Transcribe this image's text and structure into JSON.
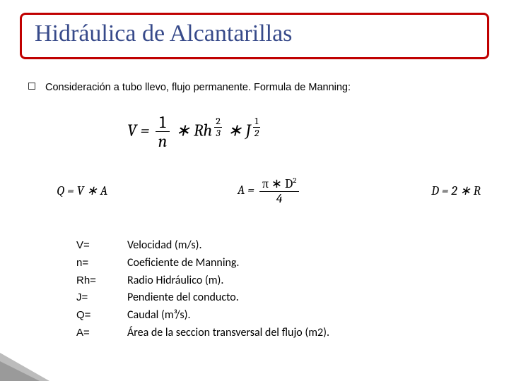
{
  "title": "Hidráulica de Alcantarillas",
  "bullet": "Consideración a tubo llevo, flujo permanente. Formula de Manning:",
  "formula_main": {
    "lhs": "V",
    "frac_num": "1",
    "frac_den": "n",
    "Rh": "Rh",
    "exp1_num": "2",
    "exp1_den": "3",
    "J": "J",
    "exp2_num": "1",
    "exp2_den": "2",
    "times": "∗"
  },
  "formula_q": {
    "Q": "Q",
    "eq": "=",
    "V": "V",
    "times": "∗",
    "A": "A"
  },
  "formula_a": {
    "A": "A",
    "eq": "=",
    "pi": "π",
    "D": "D",
    "sq": "2",
    "den": "4",
    "times": "∗"
  },
  "formula_d": {
    "D": "D",
    "eq": "=",
    "two": "2",
    "times": "∗",
    "R": "R"
  },
  "defs": [
    {
      "sym": "V=",
      "desc": "Velocidad (m/s)."
    },
    {
      "sym": "n=",
      "desc": "Coeficiente de Manning."
    },
    {
      "sym": "Rh=",
      "desc": "Radio Hidráulico (m)."
    },
    {
      "sym": "J=",
      "desc": "Pendiente del conducto."
    },
    {
      "sym": "Q=",
      "desc": "Caudal (m³/s)."
    },
    {
      "sym": "A=",
      "desc": "Área de la seccion transversal del flujo (m2)."
    }
  ],
  "style": {
    "title_color": "#374a8a",
    "title_border": "#c00000",
    "title_fontsize": 34,
    "body_fontsize": 14.5,
    "formula_fontsize_main": 24,
    "formula_fontsize_row": 18,
    "defs_sym_fontsize": 15,
    "defs_desc_fontsize": 16,
    "background": "#ffffff",
    "corner_colors": [
      "#dcdcdc",
      "#bcbcbc",
      "#9a9a9a"
    ]
  }
}
